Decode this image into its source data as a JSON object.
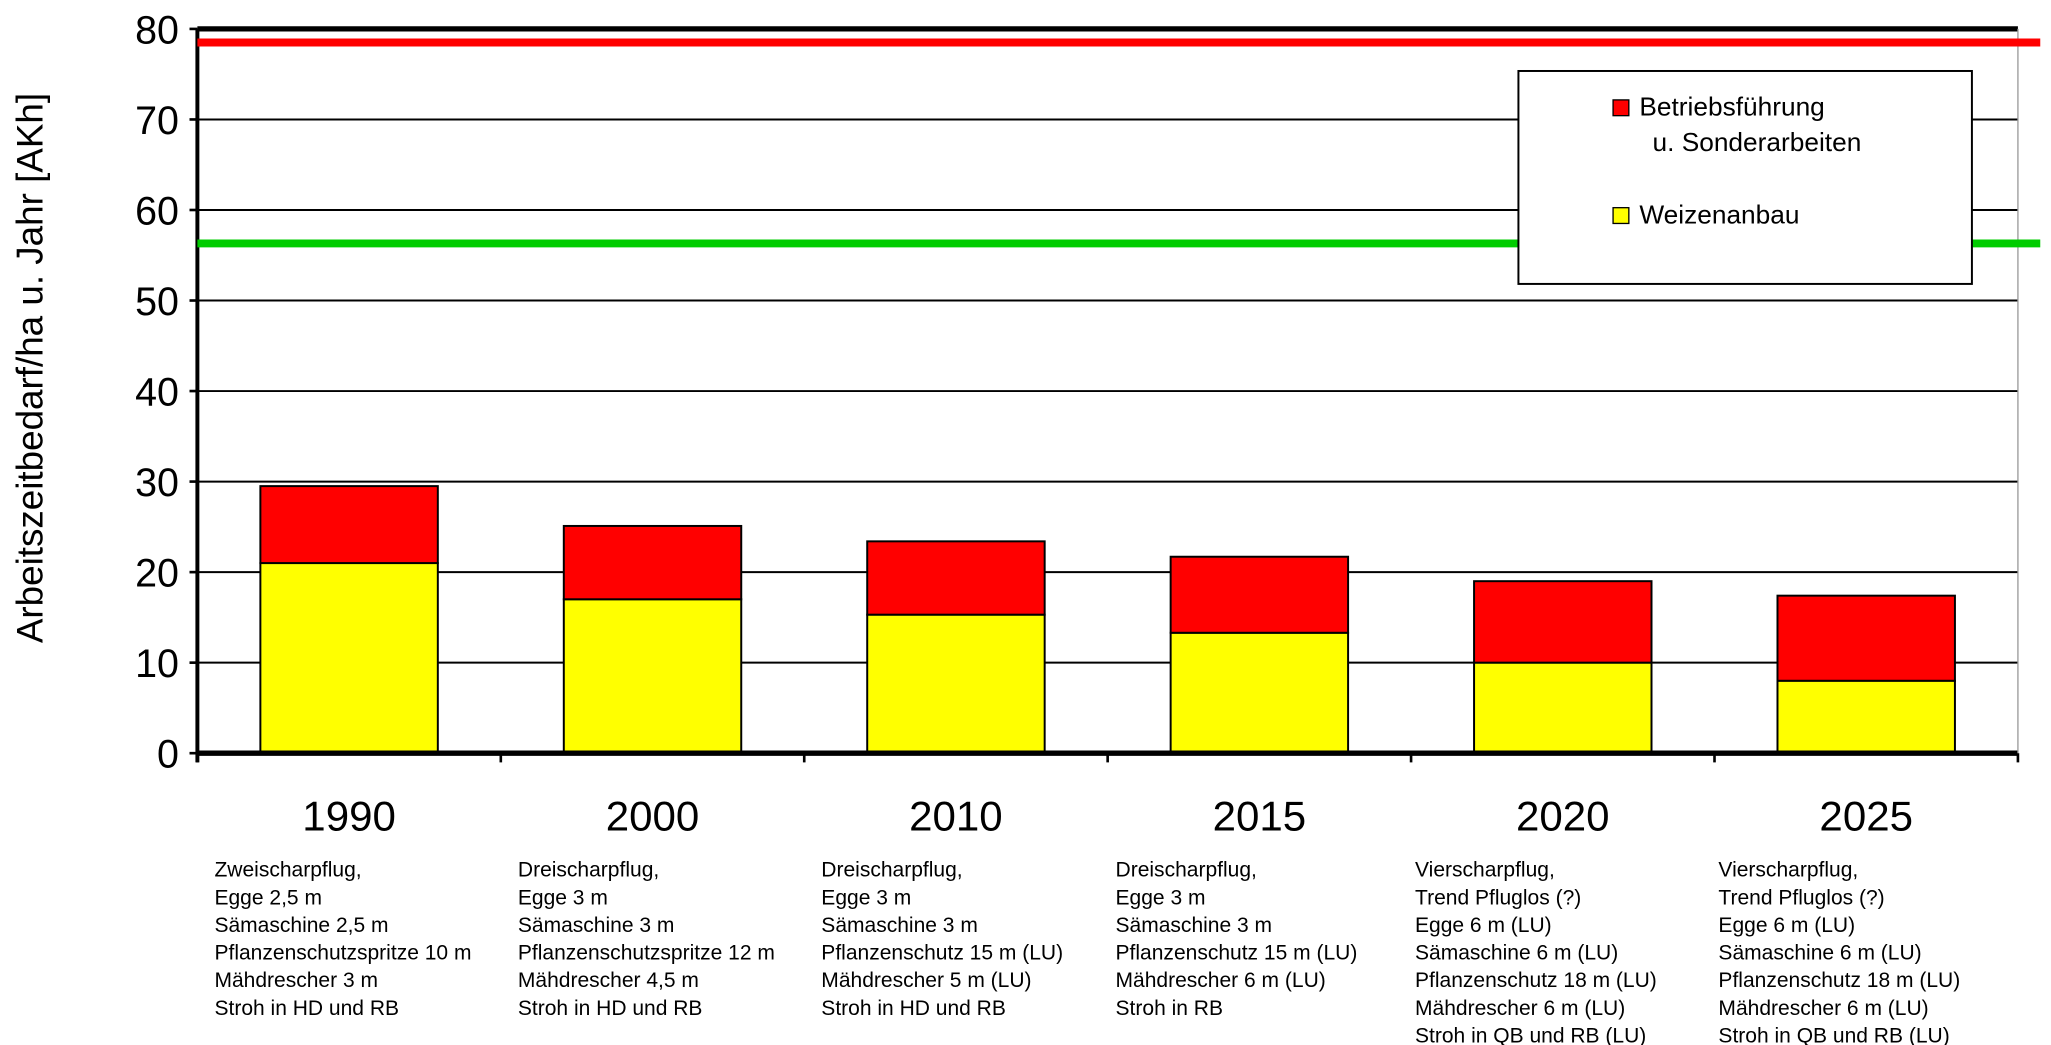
{
  "chart_data": {
    "type": "stacked_bar",
    "y_label": "Arbeitszeitbedarf/ha  u. Jahr  [AKh]",
    "categories": [
      "1990",
      "2000",
      "2010",
      "2015",
      "2020",
      "2025"
    ],
    "series": [
      {
        "name": "Weizenanbau",
        "color": "#ffff00",
        "values": [
          21,
          17,
          15.3,
          13.3,
          10,
          8
        ]
      },
      {
        "name": "Betriebsführung\nu. Sonderarbeiten",
        "color": "#ff0000",
        "values": [
          8.5,
          8.1,
          8.1,
          8.4,
          9,
          9.4
        ]
      }
    ],
    "reference_lines": [
      {
        "value": 78.5,
        "color": "#ff0000"
      },
      {
        "value": 56.3,
        "color": "#00cc00"
      }
    ],
    "notes": [
      [
        "Zweischarpflug,",
        "Egge 2,5 m",
        "Sämaschine 2,5 m",
        "Pflanzenschutzspritze 10 m",
        "Mähdrescher 3 m",
        "Stroh in HD und RB"
      ],
      [
        "Dreischarpflug,",
        "Egge 3 m",
        "Sämaschine 3 m",
        "Pflanzenschutzspritze 12 m",
        "Mähdrescher 4,5 m",
        "Stroh in HD und RB"
      ],
      [
        "Dreischarpflug,",
        "Egge 3 m",
        "Sämaschine 3 m",
        "Pflanzenschutz 15 m (LU)",
        "Mähdrescher 5 m (LU)",
        "Stroh in HD und RB"
      ],
      [
        "Dreischarpflug,",
        "Egge 3 m",
        "Sämaschine 3 m",
        "Pflanzenschutz 15 m (LU)",
        "Mähdrescher 6 m (LU)",
        "Stroh in RB"
      ],
      [
        "Vierscharpflug,",
        "Trend Pfluglos (?)",
        "Egge 6 m (LU)",
        "Sämaschine 6 m (LU)",
        "Pflanzenschutz 18 m (LU)",
        "Mähdrescher 6 m (LU)",
        "Stroh in QB und RB (LU)"
      ],
      [
        "Vierscharpflug,",
        "Trend Pfluglos (?)",
        "Egge 6 m (LU)",
        "Sämaschine 6 m (LU)",
        "Pflanzenschutz 18 m (LU)",
        "Mähdrescher 6 m (LU)",
        "Stroh in QB und RB (LU)"
      ]
    ],
    "ylim": [
      0,
      80
    ],
    "yticks": [
      0,
      10,
      20,
      30,
      40,
      50,
      60,
      70,
      80
    ],
    "grid": true
  }
}
